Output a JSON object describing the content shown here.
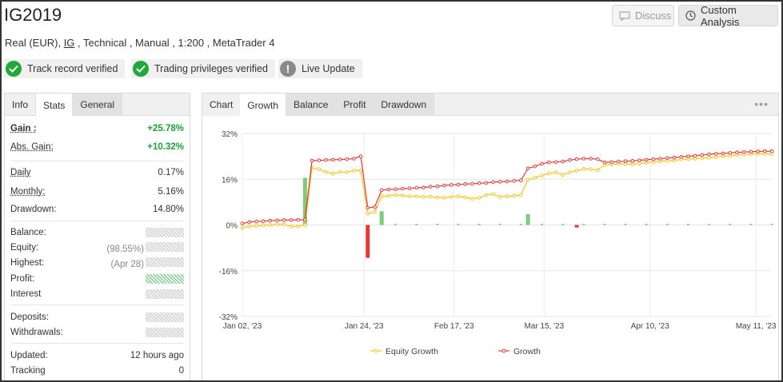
{
  "header": {
    "title": "IG2019",
    "subtitle_pre": "Real (EUR), ",
    "subtitle_link": "IG",
    "subtitle_post": " , Technical , Manual , 1:200 , MetaTrader 4",
    "discuss_label": "Discuss",
    "custom_analysis_label": "Custom Analysis"
  },
  "badges": [
    {
      "label": "Track record verified",
      "icon": "check-icon"
    },
    {
      "label": "Trading privileges verified",
      "icon": "check-icon"
    },
    {
      "label": "Live Update",
      "icon": "exclamation-icon"
    }
  ],
  "stats": {
    "tabs": [
      "Info",
      "Stats",
      "General"
    ],
    "active_tab": "Stats",
    "gain_label": "Gain :",
    "gain_value": "+25.78%",
    "abs_gain_label": "Abs. Gain:",
    "abs_gain_value": "+10.32%",
    "daily_label": "Daily",
    "daily_value": "0.17%",
    "monthly_label": "Monthly:",
    "monthly_value": "5.16%",
    "drawdown_label": "Drawdown:",
    "drawdown_value": "14.80%",
    "balance_label": "Balance:",
    "equity_label": "Equity:",
    "equity_pct": "(98.55%)",
    "highest_label": "Highest:",
    "highest_date": "(Apr 28)",
    "profit_label": "Profit:",
    "interest_label": "Interest",
    "deposits_label": "Deposits:",
    "withdrawals_label": "Withdrawals:",
    "updated_label": "Updated:",
    "updated_value": "12 hours ago",
    "tracking_label": "Tracking",
    "tracking_value": "0"
  },
  "chart_tabs": {
    "heading": "Chart",
    "tabs": [
      "Growth",
      "Balance",
      "Profit",
      "Drawdown"
    ],
    "active": "Growth",
    "menu": "•••"
  },
  "colors": {
    "equity_line": "#f5c518",
    "growth_line": "#e53935",
    "bar_positive": "#7ccc7c",
    "bar_negative": "#e53935",
    "check_green": "#22a83a"
  },
  "chart_data": {
    "type": "line",
    "title": "",
    "xlabel": "",
    "ylabel": "",
    "ylim": [
      -32,
      32
    ],
    "yticks": [
      "32%",
      "16%",
      "0%",
      "-16%",
      "-32%"
    ],
    "xticks": [
      "Jan 02, '23",
      "Jan 24, '23",
      "Feb 17, '23",
      "Mar 15, '23",
      "Apr 10, '23",
      "May 11, '23"
    ],
    "legend_position": "bottom",
    "series": [
      {
        "name": "Equity Growth",
        "values": [
          -1,
          -0.5,
          -0.3,
          -0.1,
          0,
          0.2,
          0.2,
          -0.5,
          -0.5,
          0,
          20,
          19.5,
          18.5,
          18,
          18.5,
          18.5,
          19,
          19,
          4,
          4.5,
          10,
          10.2,
          10.5,
          10.3,
          10,
          10,
          9.8,
          9.9,
          9.6,
          9.5,
          9.8,
          10,
          9.6,
          9.2,
          9.5,
          10.5,
          10.8,
          9.8,
          10,
          10.2,
          10.5,
          15.8,
          16.5,
          17.3,
          18,
          18.4,
          17.5,
          18.4,
          19,
          19.6,
          19.5,
          19.2,
          21,
          21.2,
          21.4,
          21.3,
          21.2,
          21.5,
          21.8,
          22,
          22.3,
          22.5,
          22.6,
          22.9,
          23,
          23.2,
          23.4,
          23.5,
          23.8,
          24,
          24.2,
          24.5,
          24.6,
          24.8,
          24.9,
          24.9,
          24.8
        ]
      },
      {
        "name": "Growth",
        "values": [
          0.5,
          1,
          1.2,
          1.3,
          1.5,
          1.6,
          1.7,
          1.7,
          1.8,
          1.8,
          22.5,
          22.6,
          22.7,
          22.8,
          22.9,
          23,
          23.2,
          24,
          6,
          6.3,
          12.2,
          12.4,
          12.5,
          12.7,
          12.8,
          13,
          13.1,
          13.4,
          13.5,
          13.8,
          14,
          14.1,
          14.3,
          14.4,
          14.6,
          14.7,
          15,
          15.1,
          15.2,
          15.4,
          15.6,
          19.8,
          20.5,
          21.4,
          21.9,
          22,
          22.2,
          22.7,
          23,
          23.2,
          23.2,
          23,
          21.9,
          22,
          22.2,
          22.3,
          22.4,
          22.6,
          22.8,
          23,
          23.2,
          23.4,
          23.6,
          23.8,
          24,
          24.2,
          24.5,
          24.7,
          24.9,
          25,
          25.2,
          25.4,
          25.5,
          25.6,
          25.7,
          25.8,
          25.8
        ]
      }
    ],
    "bars": [
      {
        "i": 9,
        "v": 16.5
      },
      {
        "i": 18,
        "v": -11.5
      },
      {
        "i": 20,
        "v": 4.8
      },
      {
        "i": 41,
        "v": 3.8
      },
      {
        "i": 48,
        "v": -0.9
      }
    ]
  }
}
